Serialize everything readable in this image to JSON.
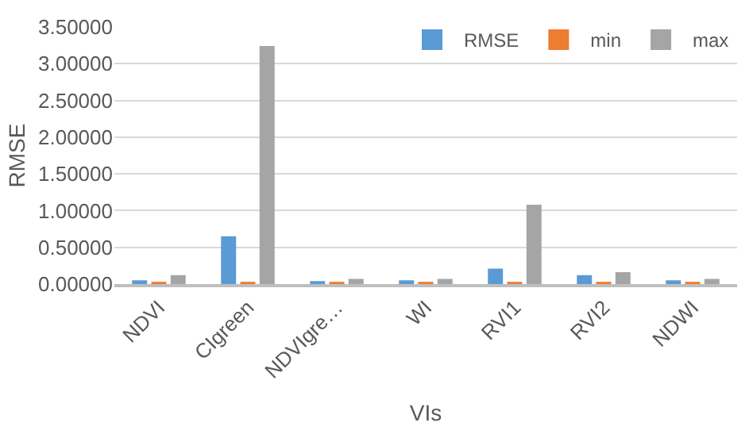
{
  "chart_data": {
    "type": "bar",
    "xlabel": "VIs",
    "ylabel": "RMSE",
    "categories": [
      "NDVI",
      "CIgreen",
      "NDVIgre…",
      "WI",
      "RVI1",
      "RVI2",
      "NDWI"
    ],
    "series": [
      {
        "name": "RMSE",
        "color": "#5b9bd5",
        "values": [
          0.04,
          0.64,
          0.03,
          0.04,
          0.2,
          0.11,
          0.04
        ]
      },
      {
        "name": "min",
        "color": "#ed7d31",
        "values": [
          0.02,
          0.02,
          0.02,
          0.02,
          0.02,
          0.02,
          0.02
        ]
      },
      {
        "name": "max",
        "color": "#a5a5a5",
        "values": [
          0.11,
          3.23,
          0.06,
          0.06,
          1.07,
          0.15,
          0.06
        ]
      }
    ],
    "ylim": [
      0,
      3.5
    ],
    "yticks": [
      {
        "value": 0,
        "label": "0.00000"
      },
      {
        "value": 0.5,
        "label": "0.50000"
      },
      {
        "value": 1,
        "label": "1.00000"
      },
      {
        "value": 1.5,
        "label": "1.50000"
      },
      {
        "value": 2,
        "label": "2.00000"
      },
      {
        "value": 2.5,
        "label": "2.50000"
      },
      {
        "value": 3,
        "label": "3.00000"
      },
      {
        "value": 3.5,
        "label": "3.50000"
      }
    ],
    "grid": "y",
    "legend": "top right"
  }
}
